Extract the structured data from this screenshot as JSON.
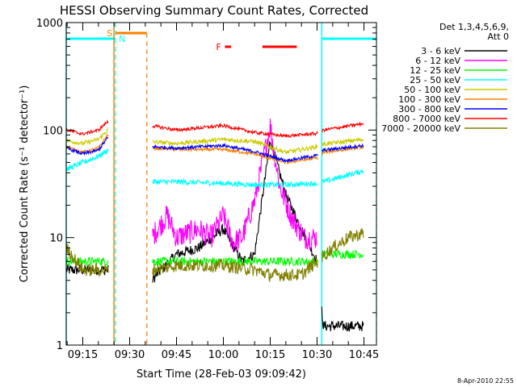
{
  "chart_data": {
    "type": "line",
    "title": "HESSI Observing Summary Count Rates, Corrected",
    "xlabel": "Start Time (28-Feb-03 09:09:42)",
    "ylabel": "Corrected Count Rate (s⁻¹ detector⁻¹)",
    "yscale": "log",
    "ylim": [
      1,
      1000
    ],
    "xlim": [
      "09:09:42",
      "10:49:00"
    ],
    "x_ticks": [
      "09:15",
      "09:30",
      "09:45",
      "10:00",
      "10:15",
      "10:30",
      "10:45"
    ],
    "y_ticks": [
      "1",
      "10",
      "100",
      "1000"
    ],
    "legend_header": [
      "Det 1,3,4,5,6,9,",
      "Att 0"
    ],
    "legend_position": "right",
    "timestamp": "8-Apr-2010 22:55",
    "flag_labels": {
      "saa": "S",
      "night": "N",
      "flare": "F"
    },
    "flag_spans": {
      "night": [
        [
          "09:09:42",
          "09:25:30"
        ],
        [
          "10:31:30",
          "10:49:00"
        ]
      ],
      "saa": [
        [
          "09:25:30",
          "09:35:30"
        ]
      ],
      "flare": [
        [
          "10:00:30",
          "10:02:30"
        ],
        [
          "10:12:30",
          "10:23:30"
        ]
      ]
    },
    "gaps": [
      [
        "09:23:15",
        "09:37:15"
      ],
      [
        "10:30:15",
        "10:31:30"
      ]
    ],
    "series": [
      {
        "name": "3 - 6 keV",
        "color": "#000000",
        "x": [
          "09:09:42",
          "09:15",
          "09:20",
          "09:23",
          "09:37",
          "09:45",
          "09:52",
          "10:00",
          "10:06",
          "10:10",
          "10:15",
          "10:20",
          "10:25",
          "10:30",
          "10:32",
          "10:38",
          "10:45"
        ],
        "y": [
          5,
          5,
          5,
          5,
          4,
          7,
          8,
          12,
          6,
          7,
          80,
          25,
          12,
          6,
          1.5,
          1.5,
          1.5
        ]
      },
      {
        "name": "6 - 12 keV",
        "color": "#ff00ff",
        "x": [
          "09:37",
          "09:42",
          "09:45",
          "09:52",
          "09:56",
          "10:00",
          "10:03",
          "10:06",
          "10:10",
          "10:15",
          "10:18",
          "10:22",
          "10:26",
          "10:30"
        ],
        "y": [
          10,
          16,
          10,
          12,
          10,
          16,
          9,
          10,
          22,
          110,
          30,
          15,
          10,
          10
        ]
      },
      {
        "name": "12 - 25 keV",
        "color": "#00ff00",
        "x": [
          "09:09:42",
          "09:15",
          "09:20",
          "09:23",
          "09:37",
          "09:45",
          "10:00",
          "10:10",
          "10:20",
          "10:30",
          "10:32",
          "10:45"
        ],
        "y": [
          6,
          6,
          6,
          6,
          6,
          6,
          6,
          6,
          6,
          6,
          7,
          7
        ]
      },
      {
        "name": "25 - 50 keV",
        "color": "#00ffff",
        "x": [
          "09:09:42",
          "09:15",
          "09:20",
          "09:23",
          "09:37",
          "09:45",
          "10:00",
          "10:10",
          "10:20",
          "10:30",
          "10:32",
          "10:45"
        ],
        "y": [
          43,
          50,
          57,
          65,
          33,
          33,
          32,
          31,
          31,
          32,
          33,
          42
        ]
      },
      {
        "name": "50 - 100 keV",
        "color": "#cccc00",
        "x": [
          "09:09:42",
          "09:15",
          "09:20",
          "09:23",
          "09:37",
          "09:45",
          "10:00",
          "10:10",
          "10:20",
          "10:30",
          "10:32",
          "10:45"
        ],
        "y": [
          80,
          75,
          82,
          100,
          78,
          75,
          82,
          78,
          62,
          70,
          74,
          82
        ]
      },
      {
        "name": "100 - 300 keV",
        "color": "#ff7f00",
        "x": [
          "09:09:42",
          "09:15",
          "09:20",
          "09:23",
          "09:37",
          "09:45",
          "10:00",
          "10:10",
          "10:20",
          "10:30",
          "10:32",
          "10:45"
        ],
        "y": [
          70,
          62,
          68,
          90,
          68,
          66,
          66,
          60,
          50,
          55,
          62,
          70
        ]
      },
      {
        "name": "300 - 800 keV",
        "color": "#0000ff",
        "x": [
          "09:09:42",
          "09:15",
          "09:20",
          "09:23",
          "09:37",
          "09:45",
          "10:00",
          "10:10",
          "10:20",
          "10:30",
          "10:32",
          "10:45"
        ],
        "y": [
          68,
          60,
          65,
          85,
          70,
          68,
          72,
          63,
          52,
          58,
          65,
          72
        ]
      },
      {
        "name": "800 - 7000 keV",
        "color": "#ff0000",
        "x": [
          "09:09:42",
          "09:15",
          "09:20",
          "09:23",
          "09:37",
          "09:45",
          "10:00",
          "10:10",
          "10:20",
          "10:30",
          "10:32",
          "10:45"
        ],
        "y": [
          100,
          92,
          100,
          120,
          110,
          100,
          110,
          95,
          88,
          93,
          100,
          115
        ]
      },
      {
        "name": "7000 - 20000 keV",
        "color": "#808000",
        "x": [
          "09:09:42",
          "09:15",
          "09:20",
          "09:23",
          "09:37",
          "09:45",
          "10:00",
          "10:10",
          "10:15",
          "10:20",
          "10:25",
          "10:30",
          "10:35",
          "10:40",
          "10:45"
        ],
        "y": [
          8,
          5,
          5,
          5,
          5,
          5.5,
          5.5,
          5,
          4.5,
          4.5,
          4.5,
          6,
          8,
          10,
          11
        ]
      }
    ]
  }
}
